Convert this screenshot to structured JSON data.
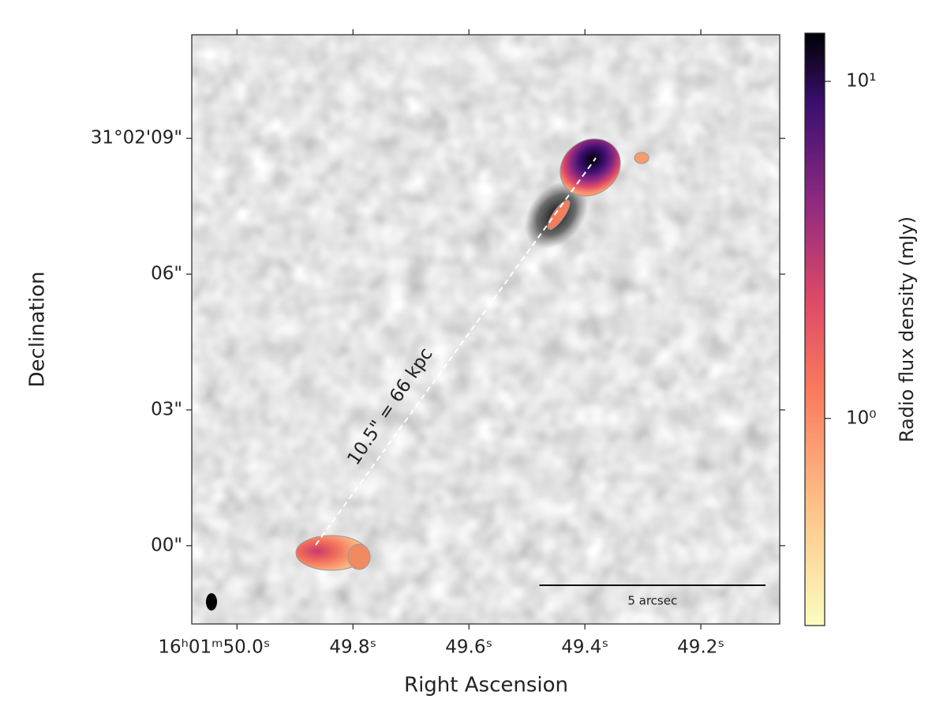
{
  "chart_data": {
    "type": "image",
    "xlabel": "Right Ascension",
    "ylabel": "Declination",
    "xlim": [
      50.078,
      49.064
    ],
    "xticks": [
      {
        "value": 50.0,
        "label": "16ʰ01ᵐ50.0ˢ"
      },
      {
        "value": 49.8,
        "label": "49.8ˢ"
      },
      {
        "value": 49.6,
        "label": "49.6ˢ"
      },
      {
        "value": 49.4,
        "label": "49.4ˢ"
      },
      {
        "value": 49.2,
        "label": "49.2ˢ"
      }
    ],
    "ylim": [
      -1.73,
      11.29
    ],
    "yticks": [
      {
        "value": 9,
        "label": "31°02'09\""
      },
      {
        "value": 6,
        "label": "06\""
      },
      {
        "value": 3,
        "label": "03\""
      },
      {
        "value": 0,
        "label": "00\""
      }
    ],
    "colorbar": {
      "label": "Radio flux density (mJy)",
      "scale": "log",
      "lim": [
        0.243,
        13.9
      ],
      "ticks": [
        {
          "value": 10,
          "label": "10¹"
        },
        {
          "value": 1,
          "label": "10⁰"
        }
      ]
    },
    "annotation": "10.5\" = 66 kpc",
    "scalebar": {
      "length": 5,
      "label": "5 arcsec"
    }
  }
}
